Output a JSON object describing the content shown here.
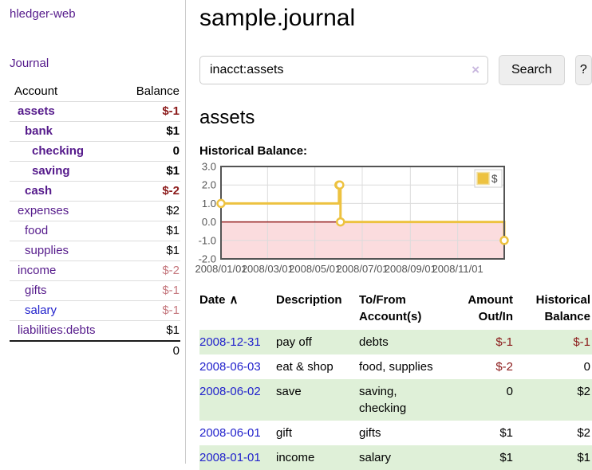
{
  "sidebar": {
    "brand": "hledger-web",
    "nav": {
      "journal": "Journal"
    },
    "accounts_table": {
      "headers": {
        "account": "Account",
        "balance": "Balance"
      },
      "rows": [
        {
          "name": "assets",
          "depth": 1,
          "bold": true,
          "balance": "$-1",
          "balance_color": "dark-red",
          "link_color": "purple"
        },
        {
          "name": "bank",
          "depth": 2,
          "bold": true,
          "balance": "$1",
          "balance_color": "black",
          "link_color": "purple"
        },
        {
          "name": "checking",
          "depth": 3,
          "bold": true,
          "balance": "0",
          "balance_color": "black",
          "link_color": "purple"
        },
        {
          "name": "saving",
          "depth": 3,
          "bold": true,
          "balance": "$1",
          "balance_color": "black",
          "link_color": "purple"
        },
        {
          "name": "cash",
          "depth": 2,
          "bold": true,
          "balance": "$-2",
          "balance_color": "dark-red",
          "link_color": "purple"
        },
        {
          "name": "expenses",
          "depth": 1,
          "bold": false,
          "balance": "$2",
          "balance_color": "black",
          "link_color": "purple"
        },
        {
          "name": "food",
          "depth": 2,
          "bold": false,
          "balance": "$1",
          "balance_color": "black",
          "link_color": "purple"
        },
        {
          "name": "supplies",
          "depth": 2,
          "bold": false,
          "balance": "$1",
          "balance_color": "black",
          "link_color": "purple"
        },
        {
          "name": "income",
          "depth": 1,
          "bold": false,
          "balance": "$-2",
          "balance_color": "light-red",
          "link_color": "purple"
        },
        {
          "name": "gifts",
          "depth": 2,
          "bold": false,
          "balance": "$-1",
          "balance_color": "light-red",
          "link_color": "purple"
        },
        {
          "name": "salary",
          "depth": 2,
          "bold": false,
          "balance": "$-1",
          "balance_color": "light-red",
          "link_color": "blue"
        },
        {
          "name": "liabilities:debts",
          "depth": 1,
          "bold": false,
          "balance": "$1",
          "balance_color": "black",
          "link_color": "purple"
        }
      ],
      "total": "0"
    }
  },
  "header": {
    "title": "sample.journal"
  },
  "search": {
    "value": "inacct:assets",
    "clear_label": "×",
    "button_label": "Search",
    "help_label": "?"
  },
  "account_page": {
    "heading": "assets",
    "chart_label": "Historical Balance:"
  },
  "chart_data": {
    "type": "line",
    "step": true,
    "title": "Historical Balance:",
    "series": [
      {
        "name": "$",
        "color": "#edc240",
        "points": [
          {
            "date": "2008-01-01",
            "day": 0,
            "value": 1
          },
          {
            "date": "2008-06-01",
            "day": 152,
            "value": 2
          },
          {
            "date": "2008-06-02",
            "day": 153,
            "value": 2
          },
          {
            "date": "2008-06-03",
            "day": 154,
            "value": 0
          },
          {
            "date": "2008-12-31",
            "day": 365,
            "value": -1
          }
        ]
      }
    ],
    "xlim_days": [
      0,
      365
    ],
    "ylim": [
      -2,
      3
    ],
    "xticks": [
      {
        "day": 0,
        "label": "2008/01/01"
      },
      {
        "day": 60,
        "label": "2008/03/01"
      },
      {
        "day": 121,
        "label": "2008/05/01"
      },
      {
        "day": 182,
        "label": "2008/07/01"
      },
      {
        "day": 244,
        "label": "2008/09/01"
      },
      {
        "day": 305,
        "label": "2008/11/01"
      }
    ],
    "yticks": [
      {
        "value": -2,
        "label": "-2.0"
      },
      {
        "value": -1,
        "label": "-1.0"
      },
      {
        "value": 0,
        "label": "0.0"
      },
      {
        "value": 1,
        "label": "1.0"
      },
      {
        "value": 2,
        "label": "2.0"
      },
      {
        "value": 3,
        "label": "3.0"
      }
    ],
    "legend": {
      "position": "top-right",
      "entries": [
        {
          "label": "$",
          "color": "#edc240"
        }
      ]
    },
    "grid": true,
    "colors": {
      "line": "#edc240",
      "marker_fill": "#ffffff",
      "negative_region_fill": "#fbdcde",
      "zero_line": "#941f1f",
      "grid": "#dcdcdc",
      "border": "#545454",
      "tick_text": "#545454"
    }
  },
  "register_table": {
    "headers": {
      "date": "Date",
      "sort_indicator": "∧",
      "description": "Description",
      "accounts": "To/From\nAccount(s)",
      "amount": "Amount\nOut/In",
      "balance": "Historical\nBalance"
    },
    "rows": [
      {
        "date": "2008-12-31",
        "description": "pay off",
        "accounts": "debts",
        "amount": "$-1",
        "amount_negative": true,
        "balance": "$-1",
        "balance_negative": true,
        "shaded": true
      },
      {
        "date": "2008-06-03",
        "description": "eat & shop",
        "accounts": "food, supplies",
        "amount": "$-2",
        "amount_negative": true,
        "balance": "0",
        "balance_negative": false,
        "shaded": false
      },
      {
        "date": "2008-06-02",
        "description": "save",
        "accounts": "saving, checking",
        "amount": "0",
        "amount_negative": false,
        "balance": "$2",
        "balance_negative": false,
        "shaded": true
      },
      {
        "date": "2008-06-01",
        "description": "gift",
        "accounts": "gifts",
        "amount": "$1",
        "amount_negative": false,
        "balance": "$2",
        "balance_negative": false,
        "shaded": false
      },
      {
        "date": "2008-01-01",
        "description": "income",
        "accounts": "salary",
        "amount": "$1",
        "amount_negative": false,
        "balance": "$1",
        "balance_negative": false,
        "shaded": true
      }
    ]
  },
  "colors": {
    "link_visited_purple": "#551a8b",
    "link_blue": "#2222cc",
    "negative_dark": "#8b1a1a",
    "negative_light": "#c5787e",
    "shaded_row_green": "#dff0d8",
    "chart_line_gold": "#edc240"
  }
}
